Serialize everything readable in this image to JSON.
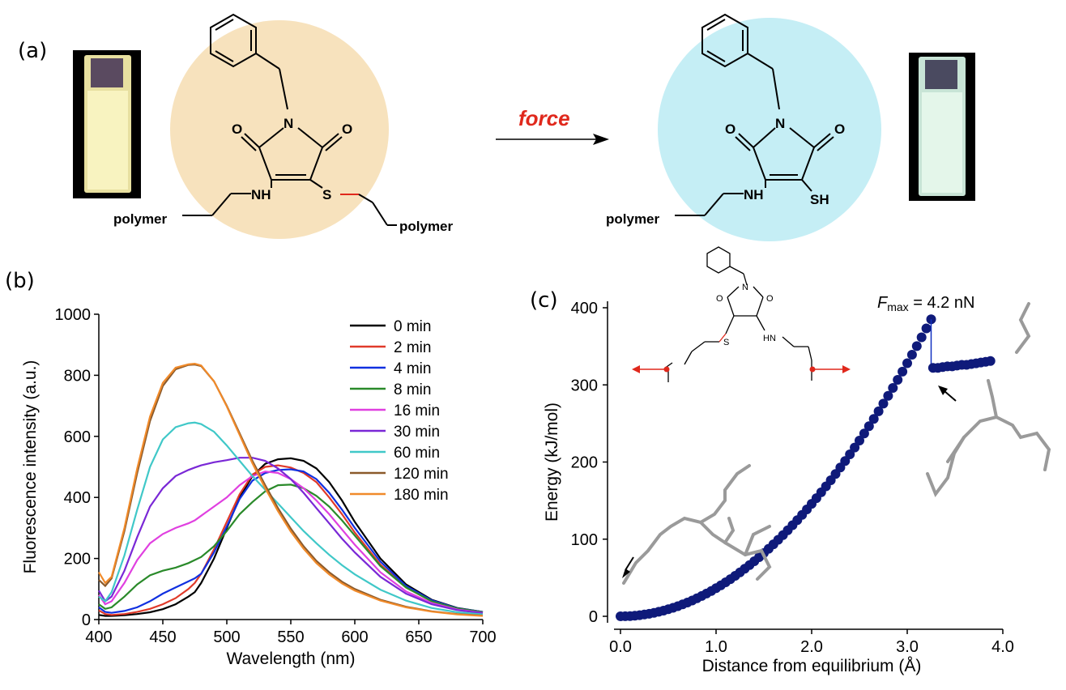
{
  "panel_labels": {
    "a": "(a)",
    "b": "(b)",
    "c": "(c)"
  },
  "scheme": {
    "arrow_label": "force",
    "arrow_color": "#e0281c",
    "left_circle_color": "#f7e2bd",
    "right_circle_color": "#c5eef5",
    "atoms": {
      "N": "N",
      "O": "O",
      "NH": "NH",
      "S": "S",
      "SH": "SH"
    },
    "polymer": "polymer",
    "vial_left_color": "#f5f0b0",
    "vial_right_color": "#d8f0e0"
  },
  "chart_data": [
    {
      "type": "line",
      "panel": "(b)",
      "xlabel": "Wavelength (nm)",
      "ylabel": "Fluorescence intensity (a.u.)",
      "xlim": [
        400,
        700
      ],
      "ylim": [
        0,
        1000
      ],
      "xticks": [
        400,
        450,
        500,
        550,
        600,
        650,
        700
      ],
      "yticks": [
        0,
        200,
        400,
        600,
        800,
        1000
      ],
      "legend_position": "top-right",
      "x": [
        400,
        405,
        410,
        420,
        430,
        440,
        450,
        460,
        470,
        475,
        480,
        490,
        500,
        510,
        520,
        530,
        540,
        550,
        560,
        570,
        580,
        590,
        600,
        620,
        640,
        660,
        680,
        700
      ],
      "series": [
        {
          "name": "0 min",
          "color": "#000000",
          "values": [
            15,
            12,
            12,
            14,
            18,
            24,
            34,
            50,
            75,
            90,
            120,
            200,
            300,
            400,
            470,
            510,
            525,
            528,
            520,
            495,
            450,
            390,
            320,
            200,
            115,
            65,
            38,
            25
          ]
        },
        {
          "name": "2 min",
          "color": "#e03a2a",
          "values": [
            30,
            18,
            15,
            18,
            25,
            35,
            50,
            70,
            100,
            120,
            150,
            230,
            320,
            410,
            475,
            500,
            505,
            498,
            480,
            450,
            400,
            345,
            285,
            180,
            105,
            60,
            36,
            24
          ]
        },
        {
          "name": "4 min",
          "color": "#1030e0",
          "values": [
            40,
            25,
            22,
            28,
            40,
            60,
            85,
            105,
            125,
            135,
            150,
            220,
            305,
            395,
            455,
            480,
            490,
            492,
            485,
            460,
            415,
            360,
            300,
            190,
            110,
            63,
            37,
            25
          ]
        },
        {
          "name": "8 min",
          "color": "#2a8a2a",
          "values": [
            50,
            35,
            40,
            75,
            115,
            145,
            160,
            170,
            185,
            195,
            205,
            240,
            290,
            345,
            385,
            420,
            440,
            442,
            430,
            405,
            370,
            325,
            275,
            175,
            105,
            60,
            36,
            24
          ]
        },
        {
          "name": "16 min",
          "color": "#e040e0",
          "values": [
            80,
            50,
            60,
            120,
            195,
            250,
            280,
            300,
            315,
            325,
            340,
            370,
            400,
            440,
            470,
            485,
            480,
            460,
            430,
            390,
            345,
            295,
            245,
            155,
            92,
            54,
            33,
            22
          ]
        },
        {
          "name": "30 min",
          "color": "#7a28d6",
          "values": [
            95,
            60,
            75,
            160,
            270,
            370,
            430,
            470,
            490,
            498,
            505,
            515,
            522,
            530,
            530,
            520,
            495,
            460,
            415,
            365,
            315,
            265,
            220,
            140,
            85,
            50,
            31,
            21
          ]
        },
        {
          "name": "60 min",
          "color": "#40c8c8",
          "values": [
            75,
            60,
            90,
            210,
            360,
            500,
            590,
            630,
            643,
            645,
            640,
            615,
            570,
            520,
            470,
            425,
            380,
            335,
            290,
            250,
            212,
            178,
            148,
            98,
            62,
            38,
            24,
            17
          ]
        },
        {
          "name": "120 min",
          "color": "#8b5a2b",
          "values": [
            130,
            110,
            135,
            290,
            480,
            650,
            765,
            820,
            834,
            835,
            830,
            780,
            700,
            610,
            520,
            440,
            365,
            298,
            240,
            192,
            155,
            124,
            100,
            65,
            42,
            27,
            18,
            13
          ]
        },
        {
          "name": "180 min",
          "color": "#f08a2a",
          "values": [
            155,
            120,
            140,
            300,
            495,
            665,
            775,
            825,
            836,
            838,
            832,
            780,
            698,
            605,
            512,
            430,
            355,
            288,
            232,
            185,
            148,
            118,
            95,
            62,
            40,
            26,
            17,
            12
          ]
        }
      ]
    },
    {
      "type": "scatter",
      "panel": "(c)",
      "xlabel": "Distance from equilibrium (Å)",
      "ylabel": "Energy (kJ/mol)",
      "xlim": [
        0,
        4
      ],
      "ylim": [
        0,
        400
      ],
      "xticks": [
        "0.0",
        "1.0",
        "2.0",
        "3.0",
        "4.0"
      ],
      "yticks": [
        0,
        100,
        200,
        300,
        400
      ],
      "annotation": {
        "symbol": "F",
        "subscript": "max",
        "text": " = 4.2 nN"
      },
      "marker_color": "#0f1a7a",
      "curve_rise": {
        "x_start": 0.0,
        "x_end": 3.25,
        "step": 0.05,
        "y_end": 385
      },
      "after_break": {
        "x": [
          3.27,
          3.32,
          3.37,
          3.42,
          3.47,
          3.52,
          3.57,
          3.62,
          3.67,
          3.72,
          3.77,
          3.82,
          3.87
        ],
        "y": [
          322,
          322,
          323,
          324,
          324,
          325,
          326,
          326,
          327,
          328,
          329,
          330,
          331
        ]
      }
    }
  ],
  "inset_chem": {
    "O": "O",
    "N": "N",
    "S": "S",
    "HN": "HN"
  }
}
